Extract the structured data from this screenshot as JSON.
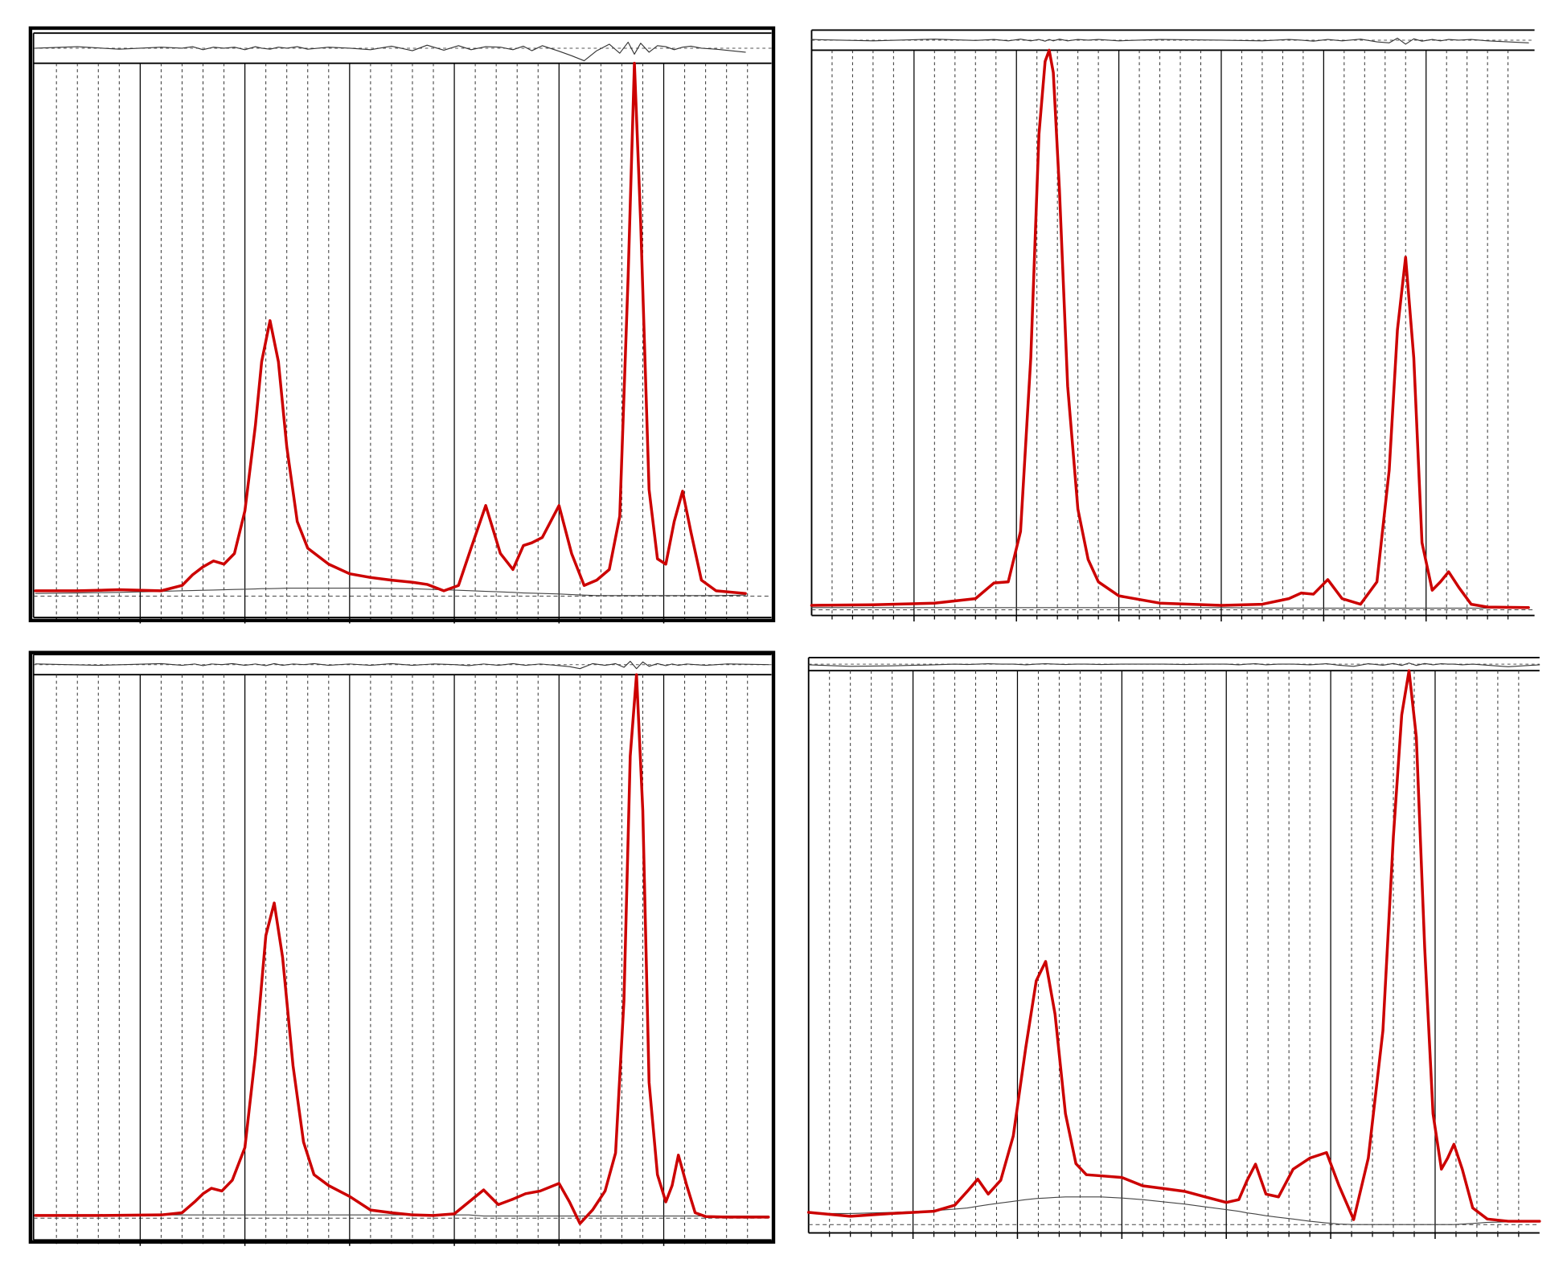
{
  "chart_data": [
    {
      "type": "line",
      "x": [
        0,
        2,
        4,
        6,
        7,
        7.5,
        8,
        8.5,
        9,
        9.5,
        10,
        10.5,
        10.8,
        11.2,
        11.6,
        12,
        12.5,
        13,
        14,
        15,
        16,
        17,
        18,
        18.7,
        19.5,
        20.2,
        20.8,
        21.5,
        22.2,
        22.8,
        23.3,
        23.7,
        24.2,
        25,
        25.6,
        26.2,
        26.8,
        27.4,
        27.9,
        28.3,
        28.6,
        28.9,
        29.3,
        29.7,
        30.1,
        30.5,
        30.9,
        31.3,
        31.8,
        32.5,
        33.9
      ],
      "series": [
        {
          "color": "#444444",
          "values": [
            0.5,
            0.6,
            0.7,
            0.9,
            1,
            1.05,
            1.1,
            1.15,
            1.2,
            1.25,
            1.3,
            1.35,
            1.4,
            1.4,
            1.45,
            1.5,
            1.5,
            1.5,
            1.5,
            1.5,
            1.5,
            1.45,
            1.4,
            1.3,
            1.2,
            1.1,
            1,
            0.9,
            0.8,
            0.7,
            0.6,
            0.55,
            0.5,
            0.4,
            0.3,
            0.2,
            0.1,
            0.1,
            0.1,
            0.1,
            0.1,
            0.1,
            0.1,
            0.1,
            0.1,
            0.1,
            0.1,
            0.1,
            0.1,
            0.1,
            0.2
          ]
        },
        {
          "color": "#333333",
          "axis": "residual",
          "values": [
            0,
            0.3,
            -0.2,
            0.2,
            0,
            0.3,
            -0.3,
            0.2,
            0,
            0.2,
            -0.3,
            0.3,
            0,
            -0.2,
            0.2,
            0,
            0.3,
            -0.2,
            0.2,
            0,
            -0.3,
            0.4,
            -0.5,
            0.6,
            -0.4,
            0.5,
            -0.3,
            0.3,
            0.2,
            -0.3,
            0.4,
            -0.5,
            0.5,
            -0.6,
            -1.5,
            -2.5,
            -0.5,
            0.8,
            -1,
            1.2,
            -1.2,
            1,
            -0.8,
            0.5,
            0.3,
            -0.3,
            0.2,
            0.4,
            0,
            -0.2,
            -0.8
          ]
        },
        {
          "color": "#cc0000",
          "values": [
            1,
            1,
            1.2,
            1,
            2,
            4,
            5.5,
            6.6,
            6,
            8,
            16,
            32,
            44,
            51.7,
            44,
            28,
            14,
            9,
            6,
            4.2,
            3.5,
            3,
            2.6,
            2.2,
            1,
            2,
            9,
            17,
            8,
            5,
            9.5,
            10,
            11,
            17,
            8,
            2,
            3,
            5,
            15,
            60,
            100,
            70,
            20,
            7,
            6,
            14,
            19.7,
            12,
            3,
            1,
            0.5
          ]
        }
      ],
      "xlim": [
        0,
        35
      ],
      "ylim": [
        -4,
        100
      ],
      "rlim": [
        -3,
        3
      ],
      "xticks": [
        5,
        10,
        15,
        20,
        25,
        30
      ],
      "xminor": [
        1,
        2,
        3,
        4,
        6,
        7,
        8,
        9,
        11,
        12,
        13,
        14,
        16,
        17,
        18,
        19,
        21,
        22,
        23,
        24,
        26,
        27,
        28,
        29,
        31,
        32,
        33,
        34
      ],
      "grid": true
    },
    {
      "type": "line",
      "x": [
        0,
        3,
        6,
        8,
        8.9,
        9.6,
        10.2,
        10.7,
        11.1,
        11.4,
        11.6,
        11.8,
        12.1,
        12.5,
        13,
        13.5,
        14,
        15,
        17,
        20,
        22,
        23.3,
        23.9,
        24.5,
        25.2,
        25.9,
        26.8,
        27.6,
        28.2,
        28.6,
        29.0,
        29.4,
        29.8,
        30.3,
        30.7,
        31.1,
        31.6,
        32.2,
        33,
        35
      ],
      "series": [
        {
          "color": "#444444",
          "values": [
            0.4,
            0.4,
            0.4,
            0.4,
            0.4,
            0.4,
            0.4,
            0.4,
            0.4,
            0.4,
            0.4,
            0.4,
            0.4,
            0.4,
            0.4,
            0.4,
            0.4,
            0.4,
            0.4,
            0.4,
            0.3,
            0.3,
            0.3,
            0.3,
            0.3,
            0.3,
            0.3,
            0.3,
            0.3,
            0.3,
            0.3,
            0.3,
            0.3,
            0.3,
            0.3,
            0.3,
            0.3,
            0.3,
            0.3,
            0.3
          ]
        },
        {
          "color": "#333333",
          "axis": "residual",
          "values": [
            0.2,
            -0.2,
            0.3,
            -0.1,
            0.2,
            -0.2,
            0.3,
            -0.2,
            0.2,
            -0.3,
            0.2,
            -0.2,
            0.3,
            -0.2,
            0.2,
            0,
            0.2,
            -0.2,
            0.2,
            0,
            -0.2,
            0.2,
            0,
            -0.3,
            0.2,
            -0.2,
            0.3,
            -0.5,
            -0.8,
            0.6,
            -1.2,
            0.4,
            -0.3,
            0.2,
            -0.2,
            0.2,
            0,
            0.2,
            -0.2,
            -0.8
          ]
        },
        {
          "color": "#cc0000",
          "values": [
            0.8,
            0.9,
            1.2,
            2,
            4.8,
            5,
            14,
            45,
            85,
            98,
            100,
            96,
            75,
            40,
            18,
            9,
            5,
            2.5,
            1.2,
            0.8,
            1,
            2,
            3,
            2.8,
            5.4,
            2,
            1,
            5,
            25,
            50,
            63,
            45,
            12,
            3.5,
            5,
            6.8,
            4,
            1,
            0.5,
            0.4
          ]
        }
      ],
      "xlim": [
        0,
        35
      ],
      "ylim": [
        -1,
        100
      ],
      "rlim": [
        -3,
        3
      ],
      "xticks": [
        5,
        10,
        15,
        20,
        25,
        30
      ],
      "xminor": [
        1,
        2,
        3,
        4,
        6,
        7,
        8,
        9,
        11,
        12,
        13,
        14,
        16,
        17,
        18,
        19,
        21,
        22,
        23,
        24,
        26,
        27,
        28,
        29,
        31,
        32,
        33,
        34
      ],
      "grid": true
    },
    {
      "type": "line",
      "x": [
        0,
        3,
        6,
        7,
        7.6,
        8,
        8.4,
        8.9,
        9.4,
        10,
        10.5,
        11,
        11.4,
        11.8,
        12.3,
        12.8,
        13.3,
        14,
        15,
        16,
        17,
        18,
        19,
        20,
        20.7,
        21.4,
        22.1,
        22.8,
        23.4,
        24.1,
        25,
        25.5,
        26,
        26.6,
        27.2,
        27.7,
        28.1,
        28.4,
        28.7,
        29,
        29.3,
        29.7,
        30.1,
        30.4,
        30.7,
        31.1,
        31.5,
        32,
        33,
        35
      ],
      "series": [
        {
          "color": "#444444",
          "values": [
            0.6,
            0.6,
            0.6,
            0.6,
            0.6,
            0.6,
            0.6,
            0.6,
            0.6,
            0.6,
            0.6,
            0.6,
            0.6,
            0.6,
            0.6,
            0.6,
            0.6,
            0.6,
            0.6,
            0.6,
            0.6,
            0.6,
            0.6,
            0.6,
            0.6,
            0.4,
            0.4,
            0.4,
            0.4,
            0.4,
            0.4,
            0.4,
            0.4,
            0.4,
            0.4,
            0.4,
            0.4,
            0.4,
            0.4,
            0.4,
            0.4,
            0.4,
            0.4,
            0.4,
            0.4,
            0.4,
            0.4,
            0.4,
            0.4,
            0.4
          ]
        },
        {
          "color": "#333333",
          "axis": "residual",
          "values": [
            0.2,
            -0.2,
            0.3,
            -0.2,
            0.2,
            -0.3,
            0.2,
            0,
            0.3,
            -0.2,
            0.2,
            -0.3,
            0.3,
            -0.2,
            0.2,
            0,
            0.3,
            -0.2,
            0.2,
            -0.2,
            0.3,
            -0.2,
            0.2,
            0,
            -0.3,
            0.2,
            -0.2,
            0.3,
            -0.2,
            0.2,
            -0.3,
            -0.6,
            -1.2,
            0.3,
            -0.2,
            0.3,
            -0.8,
            1,
            -1.2,
            0.8,
            -0.5,
            0.3,
            -0.3,
            0.2,
            -0.2,
            0.2,
            0,
            -0.2,
            0.2,
            0
          ]
        },
        {
          "color": "#cc0000",
          "values": [
            0.5,
            0.5,
            0.6,
            1,
            3,
            4.5,
            5.5,
            5,
            7,
            13,
            30,
            52,
            58,
            48,
            28,
            14,
            8,
            6,
            4,
            1.5,
            1,
            0.6,
            0.5,
            0.8,
            3,
            5.2,
            2.5,
            3.5,
            4.5,
            5,
            6.4,
            3,
            -1,
            1.5,
            5,
            12,
            40,
            85,
            100,
            75,
            25,
            8,
            3,
            6,
            11.6,
            6,
            1,
            0.3,
            0.2,
            0.2
          ]
        }
      ],
      "xlim": [
        0,
        35
      ],
      "ylim": [
        -4,
        100
      ],
      "rlim": [
        -3,
        3
      ],
      "xticks": [
        5,
        10,
        15,
        20,
        25,
        30
      ],
      "xminor": [
        1,
        2,
        3,
        4,
        6,
        7,
        8,
        9,
        11,
        12,
        13,
        14,
        16,
        17,
        18,
        19,
        21,
        22,
        23,
        24,
        26,
        27,
        28,
        29,
        31,
        32,
        33,
        34
      ],
      "grid": true
    },
    {
      "type": "line",
      "x": [
        0,
        2,
        4,
        6,
        7,
        7.6,
        8.1,
        8.6,
        9.2,
        9.8,
        10.4,
        10.9,
        11.35,
        11.8,
        12.3,
        12.8,
        13.3,
        14,
        15,
        16,
        17,
        18,
        19,
        20,
        20.6,
        21,
        21.4,
        21.9,
        22.5,
        23.2,
        24,
        24.8,
        25.4,
        26.1,
        26.8,
        27.5,
        28,
        28.4,
        28.75,
        29.1,
        29.5,
        29.9,
        30.3,
        30.6,
        30.9,
        31.3,
        31.8,
        32.5,
        33.5,
        35
      ],
      "series": [
        {
          "color": "#444444",
          "values": [
            2,
            2,
            2.2,
            2.5,
            2.8,
            3,
            3.3,
            3.6,
            3.9,
            4.2,
            4.5,
            4.7,
            4.8,
            4.9,
            5,
            5,
            5,
            5,
            4.8,
            4.5,
            4.1,
            3.7,
            3.2,
            2.7,
            2.4,
            2.1,
            1.9,
            1.6,
            1.3,
            1,
            0.6,
            0.3,
            0.1,
            0,
            0,
            0,
            0,
            0,
            0,
            0,
            0,
            0,
            0,
            0,
            0,
            0.1,
            0.2,
            0.4,
            0.5,
            0.5
          ]
        },
        {
          "color": "#333333",
          "axis": "residual",
          "values": [
            -0.3,
            -1,
            -0.8,
            -0.3,
            0,
            -0.2,
            0,
            0.2,
            0,
            0,
            -0.3,
            0,
            0.2,
            0,
            -0.2,
            0,
            0,
            -0.2,
            0,
            0,
            0,
            -0.2,
            0,
            0,
            -0.3,
            0,
            0.2,
            -0.3,
            0,
            0,
            -0.3,
            0.2,
            -0.5,
            -1,
            0.2,
            -0.5,
            0.3,
            -0.6,
            0.5,
            -0.6,
            0.3,
            -0.3,
            0.2,
            0,
            0,
            -0.3,
            0,
            -0.5,
            -1.2,
            -0.3
          ]
        },
        {
          "color": "#cc0000",
          "values": [
            2.2,
            1.5,
            2,
            2.4,
            3.5,
            6,
            8.2,
            5.5,
            8,
            16,
            32,
            44,
            47.5,
            38,
            20,
            11,
            9,
            8.8,
            8.5,
            7,
            6.5,
            6,
            5,
            4,
            4.5,
            8,
            10.9,
            5.5,
            5,
            10,
            12,
            13,
            7,
            0.9,
            12,
            35,
            70,
            92,
            100,
            88,
            50,
            20,
            10,
            12,
            14.5,
            10,
            3,
            1,
            0.6,
            0.6
          ]
        }
      ],
      "xlim": [
        0,
        35
      ],
      "ylim": [
        -1.5,
        100
      ],
      "rlim": [
        -3,
        3
      ],
      "xticks": [
        5,
        10,
        15,
        20,
        25,
        30
      ],
      "xminor": [
        1,
        2,
        3,
        4,
        6,
        7,
        8,
        9,
        11,
        12,
        13,
        14,
        16,
        17,
        18,
        19,
        21,
        22,
        23,
        24,
        26,
        27,
        28,
        29,
        31,
        32,
        33,
        34
      ],
      "grid": true
    }
  ]
}
